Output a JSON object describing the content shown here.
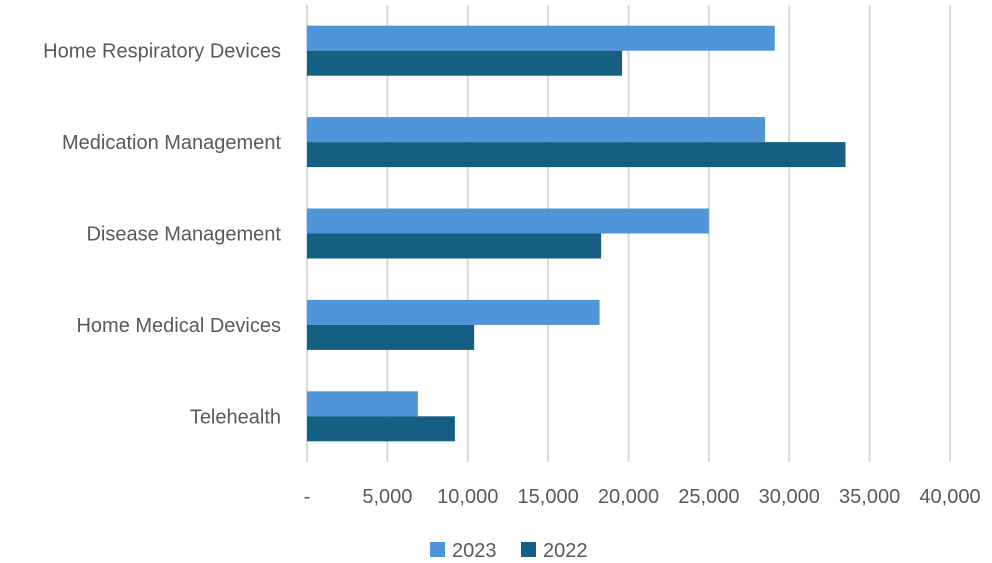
{
  "chart_data": {
    "type": "bar",
    "orientation": "horizontal",
    "categories": [
      "Home Respiratory Devices",
      "Medication Management",
      "Disease Management",
      "Home Medical Devices",
      "Telehealth"
    ],
    "series": [
      {
        "name": "2023",
        "color": "#4e95d9",
        "values": [
          29100,
          28500,
          25000,
          18200,
          6900
        ]
      },
      {
        "name": "2022",
        "color": "#156082",
        "values": [
          19600,
          33500,
          18300,
          10400,
          9200
        ]
      }
    ],
    "xlim": [
      0,
      40000
    ],
    "xticks": [
      0,
      5000,
      10000,
      15000,
      20000,
      25000,
      30000,
      35000,
      40000
    ],
    "xtick_labels": [
      "-",
      "5,000",
      "10,000",
      "15,000",
      "20,000",
      "25,000",
      "30,000",
      "35,000",
      "40,000"
    ],
    "grid": "vertical",
    "gridline_color": "#d9d9d9",
    "legend_position": "bottom",
    "title": "",
    "xlabel": "",
    "ylabel": ""
  }
}
